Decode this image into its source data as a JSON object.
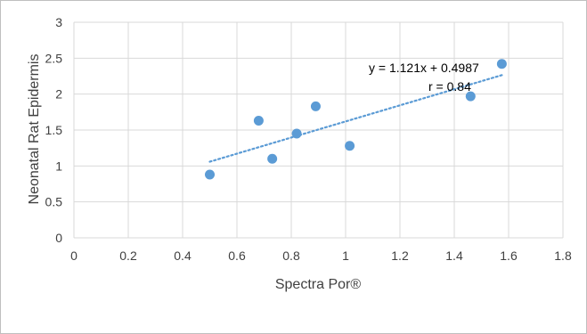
{
  "chart_data": {
    "type": "scatter",
    "xlabel": "Spectra Por®",
    "ylabel": "Neonatal Rat Epidermis",
    "xlim": [
      0,
      1.8
    ],
    "ylim": [
      0,
      3
    ],
    "x_ticks": [
      0,
      0.2,
      0.4,
      0.6,
      0.8,
      1,
      1.2,
      1.4,
      1.6,
      1.8
    ],
    "y_ticks": [
      0,
      0.5,
      1,
      1.5,
      2,
      2.5,
      3
    ],
    "x_tick_labels": [
      "0",
      "0.2",
      "0.4",
      "0.6",
      "0.8",
      "1",
      "1.2",
      "1.4",
      "1.6",
      "1.8"
    ],
    "y_tick_labels": [
      "0",
      "0.5",
      "1",
      "1.5",
      "2",
      "2.5",
      "3"
    ],
    "grid": "major gridlines",
    "legend": "none",
    "points": [
      {
        "x": 0.5,
        "y": 0.88
      },
      {
        "x": 0.68,
        "y": 1.63
      },
      {
        "x": 0.73,
        "y": 1.1
      },
      {
        "x": 0.82,
        "y": 1.45
      },
      {
        "x": 0.89,
        "y": 1.83
      },
      {
        "x": 1.015,
        "y": 1.28
      },
      {
        "x": 1.46,
        "y": 1.97
      },
      {
        "x": 1.575,
        "y": 2.42
      }
    ],
    "trendline": {
      "type": "linear",
      "slope": 1.121,
      "intercept": 0.4987,
      "x_range": [
        0.5,
        1.575
      ],
      "style": "dotted"
    },
    "annotations": [
      "y = 1.121x + 0.4987",
      "r = 0.84"
    ],
    "colors": {
      "marker": "#5b9bd5",
      "trendline": "#5b9bd5",
      "grid": "#d9d9d9",
      "text": "#404040"
    }
  }
}
